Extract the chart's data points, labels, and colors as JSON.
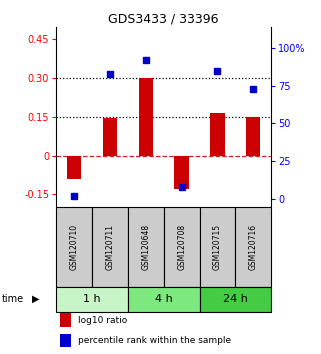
{
  "title": "GDS3433 / 33396",
  "samples": [
    "GSM120710",
    "GSM120711",
    "GSM120648",
    "GSM120708",
    "GSM120715",
    "GSM120716"
  ],
  "log10_ratio": [
    -0.09,
    0.145,
    0.3,
    -0.13,
    0.165,
    0.15
  ],
  "percentile_rank": [
    2,
    83,
    92,
    8,
    85,
    73
  ],
  "time_groups": [
    {
      "label": "1 h",
      "start": 0,
      "end": 2,
      "color": "#c8f5c8"
    },
    {
      "label": "4 h",
      "start": 2,
      "end": 4,
      "color": "#7de87d"
    },
    {
      "label": "24 h",
      "start": 4,
      "end": 6,
      "color": "#44cc44"
    }
  ],
  "ylim_left": [
    -0.2,
    0.5
  ],
  "ylim_right": [
    -5.71,
    114.29
  ],
  "yticks_left": [
    -0.15,
    0.0,
    0.15,
    0.3,
    0.45
  ],
  "ytick_labels_left": [
    "-0.15",
    "0",
    "0.15",
    "0.30",
    "0.45"
  ],
  "yticks_right": [
    0,
    25,
    50,
    75,
    100
  ],
  "ytick_labels_right": [
    "0",
    "25",
    "50",
    "75",
    "100%"
  ],
  "hlines": [
    0.15,
    0.3
  ],
  "bar_color": "#cc0000",
  "dot_color": "#0000cc",
  "zero_line_color": "#cc2222",
  "grid_line_color": "#000000",
  "bg_color": "#ffffff",
  "sample_box_color": "#cccccc",
  "legend_items": [
    {
      "color": "#cc0000",
      "label": "log10 ratio"
    },
    {
      "color": "#0000cc",
      "label": "percentile rank within the sample"
    }
  ]
}
